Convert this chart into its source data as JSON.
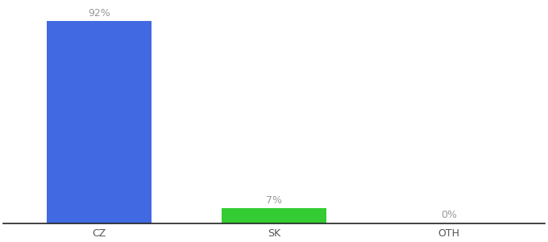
{
  "categories": [
    "CZ",
    "SK",
    "OTH"
  ],
  "values": [
    92,
    7,
    0
  ],
  "bar_colors": [
    "#4169e1",
    "#33cc33",
    "#aaaaaa"
  ],
  "labels": [
    "92%",
    "7%",
    "0%"
  ],
  "ylim": [
    0,
    100
  ],
  "background_color": "#ffffff",
  "label_fontsize": 9,
  "tick_fontsize": 9,
  "bar_width": 0.6,
  "label_color": "#999999",
  "tick_color": "#555555",
  "spine_color": "#222222"
}
